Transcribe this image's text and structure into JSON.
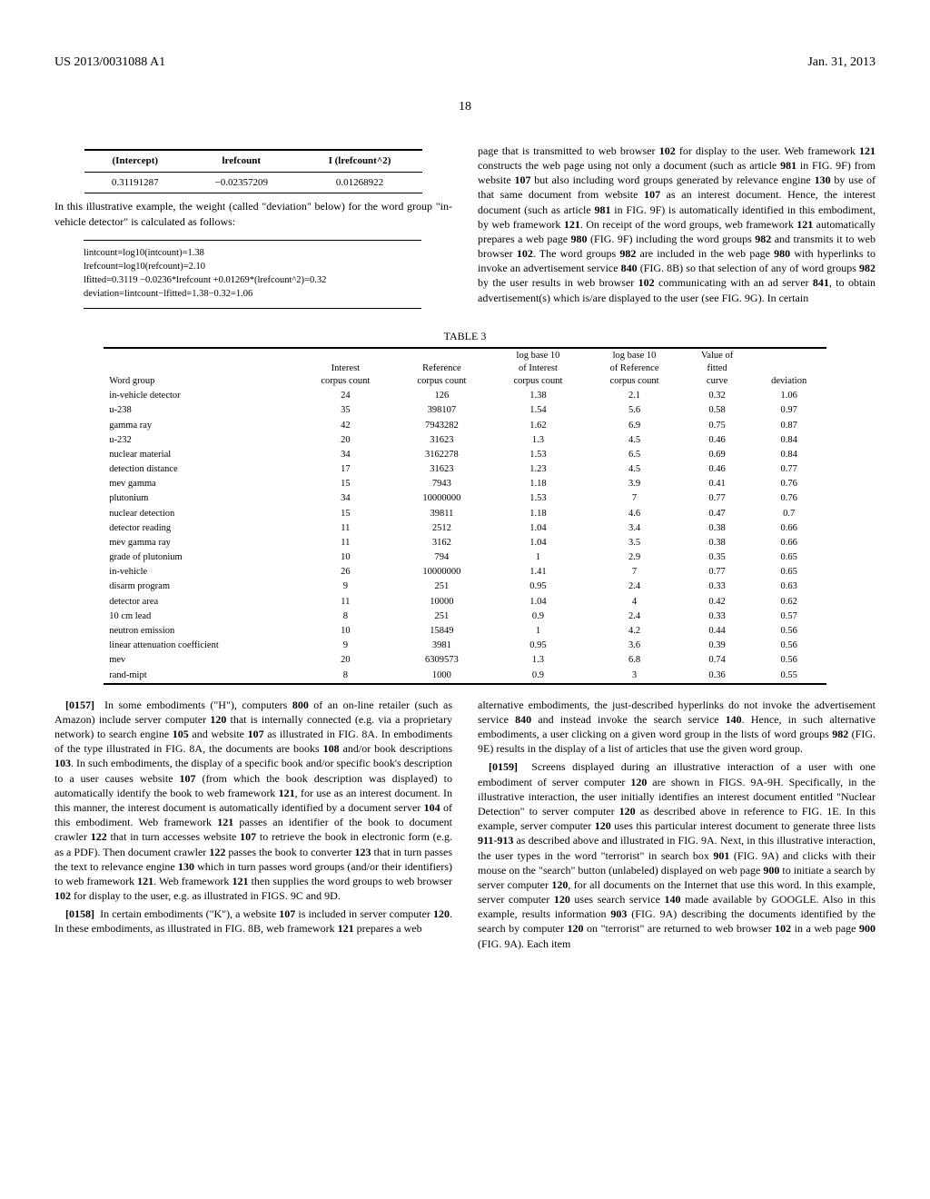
{
  "header": {
    "pub_number": "US 2013/0031088 A1",
    "pub_date": "Jan. 31, 2013",
    "page_number": "18"
  },
  "small_table": {
    "headers": [
      "(Intercept)",
      "lrefcount",
      "I (lrefcount^2)"
    ],
    "row": [
      "0.31191287",
      "−0.02357209",
      "0.01268922"
    ]
  },
  "text_after_small_table": "In this illustrative example, the weight (called \"deviation\" below) for the word group \"in-vehicle detector\" is calculated as follows:",
  "formulas": [
    "lintcount=log10(intcount)=1.38",
    "lrefcount=log10(refcount)=2.10",
    "lfitted=0.3119 −0.0236*lrefcount +0.01269*(lrefcount^2)=0.32",
    "deviation=lintcount−lfitted=1.38−0.32=1.06"
  ],
  "right_col_top_para": "page that is transmitted to web browser 102 for display to the user. Web framework 121 constructs the web page using not only a document (such as article 981 in FIG. 9F) from website 107 but also including word groups generated by relevance engine 130 by use of that same document from website 107 as an interest document. Hence, the interest document (such as article 981 in FIG. 9F) is automatically identified in this embodiment, by web framework 121. On receipt of the word groups, web framework 121 automatically prepares a web page 980 (FIG. 9F) including the word groups 982 and transmits it to web browser 102. The word groups 982 are included in the web page 980 with hyperlinks to invoke an advertisement service 840 (FIG. 8B) so that selection of any of word groups 982 by the user results in web browser 102 communicating with an ad server 841, to obtain advertisement(s) which is/are displayed to the user (see FIG. 9G). In certain",
  "table3": {
    "title": "TABLE 3",
    "headers": [
      "Word group",
      "Interest corpus count",
      "Reference corpus count",
      "log base 10 of Interest corpus count",
      "log base 10 of Reference corpus count",
      "Value of fitted curve",
      "deviation"
    ],
    "rows": [
      [
        "in-vehicle detector",
        "24",
        "126",
        "1.38",
        "2.1",
        "0.32",
        "1.06"
      ],
      [
        "u-238",
        "35",
        "398107",
        "1.54",
        "5.6",
        "0.58",
        "0.97"
      ],
      [
        "gamma ray",
        "42",
        "7943282",
        "1.62",
        "6.9",
        "0.75",
        "0.87"
      ],
      [
        "u-232",
        "20",
        "31623",
        "1.3",
        "4.5",
        "0.46",
        "0.84"
      ],
      [
        "nuclear material",
        "34",
        "3162278",
        "1.53",
        "6.5",
        "0.69",
        "0.84"
      ],
      [
        "detection distance",
        "17",
        "31623",
        "1.23",
        "4.5",
        "0.46",
        "0.77"
      ],
      [
        "mev gamma",
        "15",
        "7943",
        "1.18",
        "3.9",
        "0.41",
        "0.76"
      ],
      [
        "plutonium",
        "34",
        "10000000",
        "1.53",
        "7",
        "0.77",
        "0.76"
      ],
      [
        "nuclear detection",
        "15",
        "39811",
        "1.18",
        "4.6",
        "0.47",
        "0.7"
      ],
      [
        "detector reading",
        "11",
        "2512",
        "1.04",
        "3.4",
        "0.38",
        "0.66"
      ],
      [
        "mev gamma ray",
        "11",
        "3162",
        "1.04",
        "3.5",
        "0.38",
        "0.66"
      ],
      [
        "grade of plutonium",
        "10",
        "794",
        "1",
        "2.9",
        "0.35",
        "0.65"
      ],
      [
        "in-vehicle",
        "26",
        "10000000",
        "1.41",
        "7",
        "0.77",
        "0.65"
      ],
      [
        "disarm program",
        "9",
        "251",
        "0.95",
        "2.4",
        "0.33",
        "0.63"
      ],
      [
        "detector area",
        "11",
        "10000",
        "1.04",
        "4",
        "0.42",
        "0.62"
      ],
      [
        "10 cm lead",
        "8",
        "251",
        "0.9",
        "2.4",
        "0.33",
        "0.57"
      ],
      [
        "neutron emission",
        "10",
        "15849",
        "1",
        "4.2",
        "0.44",
        "0.56"
      ],
      [
        "linear attenuation coefficient",
        "9",
        "3981",
        "0.95",
        "3.6",
        "0.39",
        "0.56"
      ],
      [
        "mev",
        "20",
        "6309573",
        "1.3",
        "6.8",
        "0.74",
        "0.56"
      ],
      [
        "rand-mipt",
        "8",
        "1000",
        "0.9",
        "3",
        "0.36",
        "0.55"
      ]
    ]
  },
  "para157_num": "[0157]",
  "para157": "In some embodiments (\"H\"), computers 800 of an on-line retailer (such as Amazon) include server computer 120 that is internally connected (e.g. via a proprietary network) to search engine 105 and website 107 as illustrated in FIG. 8A. In embodiments of the type illustrated in FIG. 8A, the documents are books 108 and/or book descriptions 103. In such embodiments, the display of a specific book and/or specific book's description to a user causes website 107 (from which the book description was displayed) to automatically identify the book to web framework 121, for use as an interest document. In this manner, the interest document is automatically identified by a document server 104 of this embodiment. Web framework 121 passes an identifier of the book to document crawler 122 that in turn accesses website 107 to retrieve the book in electronic form (e.g. as a PDF). Then document crawler 122 passes the book to converter 123 that in turn passes the text to relevance engine 130 which in turn passes word groups (and/or their identifiers) to web framework 121. Web framework 121 then supplies the word groups to web browser 102 for display to the user, e.g. as illustrated in FIGS. 9C and 9D.",
  "para158_num": "[0158]",
  "para158": "In certain embodiments (\"K\"), a website 107 is included in server computer 120. In these embodiments, as illustrated in FIG. 8B, web framework 121 prepares a web",
  "right_alt_para": "alternative embodiments, the just-described hyperlinks do not invoke the advertisement service 840 and instead invoke the search service 140. Hence, in such alternative embodiments, a user clicking on a given word group in the lists of word groups 982 (FIG. 9E) results in the display of a list of articles that use the given word group.",
  "para159_num": "[0159]",
  "para159": "Screens displayed during an illustrative interaction of a user with one embodiment of server computer 120 are shown in FIGS. 9A-9H. Specifically, in the illustrative interaction, the user initially identifies an interest document entitled \"Nuclear Detection\" to server computer 120 as described above in reference to FIG. 1E. In this example, server computer 120 uses this particular interest document to generate three lists 911-913 as described above and illustrated in FIG. 9A. Next, in this illustrative interaction, the user types in the word \"terrorist\" in search box 901 (FIG. 9A) and clicks with their mouse on the \"search\" button (unlabeled) displayed on web page 900 to initiate a search by server computer 120, for all documents on the Internet that use this word. In this example, server computer 120 uses search service 140 made available by GOOGLE. Also in this example, results information 903 (FIG. 9A) describing the documents identified by the search by computer 120 on \"terrorist\" are returned to web browser 102 in a web page 900 (FIG. 9A). Each item"
}
